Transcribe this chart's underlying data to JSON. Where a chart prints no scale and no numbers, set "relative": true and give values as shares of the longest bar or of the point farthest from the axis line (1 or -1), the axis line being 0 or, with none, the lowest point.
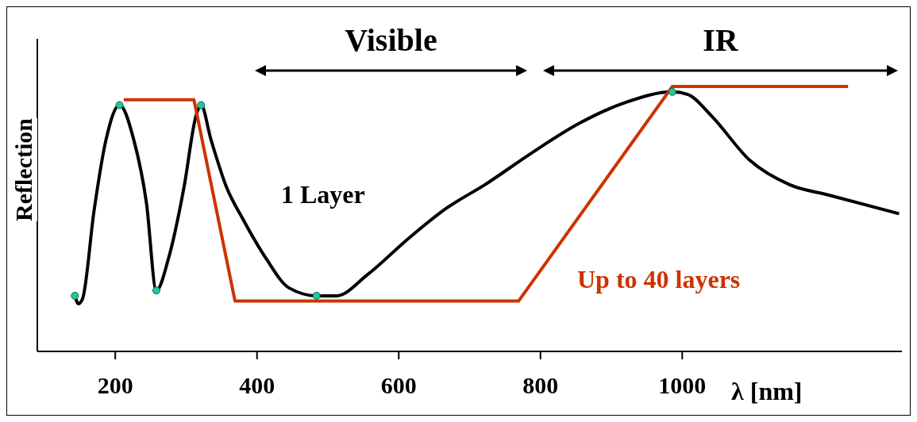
{
  "chart_data": {
    "type": "line",
    "relative": true,
    "ylabel": "Reflection",
    "xlabel": "λ [nm]",
    "xlim": [
      90,
      1310
    ],
    "xticks": [
      200,
      400,
      600,
      800,
      1000
    ],
    "marker": "none",
    "annotations": [
      "Visible",
      "IR"
    ],
    "series": [
      {
        "name": "1 Layer",
        "color": "#000000",
        "x": [
          143,
          148,
          154,
          170,
          187,
          206,
          226,
          244,
          258,
          275,
          297,
          314,
          321,
          335,
          357,
          380,
          413,
          445,
          484,
          512,
          556,
          611,
          667,
          722,
          788,
          854,
          920,
          986,
          1008,
          1041,
          1096,
          1151,
          1207,
          1306
        ],
        "values": [
          0.21,
          0.18,
          0.2,
          0.53,
          0.8,
          0.93,
          0.8,
          0.56,
          0.23,
          0.35,
          0.62,
          0.89,
          0.93,
          0.8,
          0.62,
          0.5,
          0.35,
          0.24,
          0.21,
          0.21,
          0.29,
          0.42,
          0.54,
          0.63,
          0.75,
          0.86,
          0.94,
          0.98,
          0.97,
          0.89,
          0.72,
          0.63,
          0.59,
          0.52
        ]
      },
      {
        "name": "Up to 40 layers",
        "color": "#cc3300",
        "line_style": "solid",
        "x": [
          212,
          311,
          369,
          769,
          986,
          1234
        ],
        "values": [
          0.95,
          0.95,
          0.19,
          0.19,
          1,
          1
        ]
      },
      {
        "type": "scatter",
        "color": "#20c8a0",
        "marker": "circle",
        "x": [
          143,
          206,
          258,
          321,
          484,
          986
        ],
        "values": [
          0.21,
          0.93,
          0.23,
          0.93,
          0.21,
          0.98
        ]
      }
    ]
  }
}
